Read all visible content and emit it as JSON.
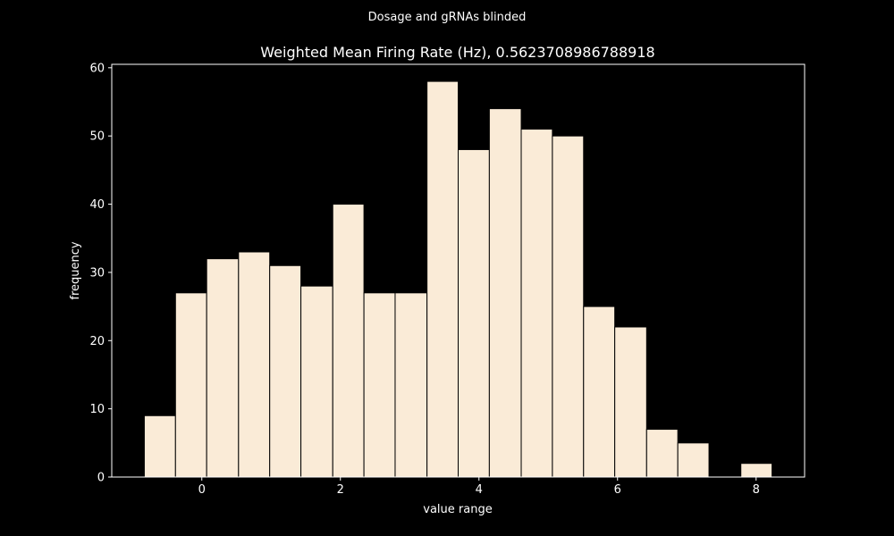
{
  "figure": {
    "suptitle": "Dosage and gRNAs blinded",
    "background": "#000000",
    "foreground": "#ffffff"
  },
  "chart_data": {
    "type": "bar",
    "subtype": "histogram",
    "title": "Weighted Mean Firing Rate (Hz), 0.5623708986788918",
    "xlabel": "value range",
    "ylabel": "frequency",
    "xlim": [
      -1.3,
      8.7
    ],
    "ylim": [
      0,
      60.5
    ],
    "xticks": [
      0,
      2,
      4,
      6,
      8
    ],
    "yticks": [
      0,
      10,
      20,
      30,
      40,
      50,
      60
    ],
    "grid": false,
    "bar_color": "#faebd7",
    "edge_color": "#000000",
    "bins": [
      {
        "start": -0.83,
        "end": -0.38,
        "count": 9
      },
      {
        "start": -0.38,
        "end": 0.07,
        "count": 27
      },
      {
        "start": 0.07,
        "end": 0.53,
        "count": 32
      },
      {
        "start": 0.53,
        "end": 0.98,
        "count": 33
      },
      {
        "start": 0.98,
        "end": 1.43,
        "count": 31
      },
      {
        "start": 1.43,
        "end": 1.89,
        "count": 28
      },
      {
        "start": 1.89,
        "end": 2.34,
        "count": 40
      },
      {
        "start": 2.34,
        "end": 2.79,
        "count": 27
      },
      {
        "start": 2.79,
        "end": 3.25,
        "count": 27
      },
      {
        "start": 3.25,
        "end": 3.7,
        "count": 58
      },
      {
        "start": 3.7,
        "end": 4.15,
        "count": 48
      },
      {
        "start": 4.15,
        "end": 4.61,
        "count": 54
      },
      {
        "start": 4.61,
        "end": 5.06,
        "count": 51
      },
      {
        "start": 5.06,
        "end": 5.51,
        "count": 50
      },
      {
        "start": 5.51,
        "end": 5.96,
        "count": 25
      },
      {
        "start": 5.96,
        "end": 6.42,
        "count": 22
      },
      {
        "start": 6.42,
        "end": 6.87,
        "count": 7
      },
      {
        "start": 6.87,
        "end": 7.32,
        "count": 5
      },
      {
        "start": 7.32,
        "end": 7.78,
        "count": 0
      },
      {
        "start": 7.78,
        "end": 8.23,
        "count": 2
      }
    ]
  }
}
